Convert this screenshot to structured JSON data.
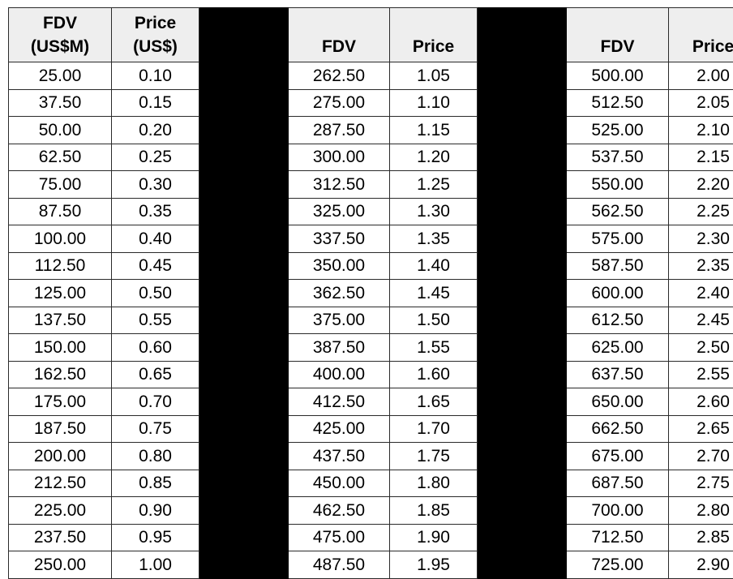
{
  "headers": {
    "col1_line1": "FDV",
    "col1_line2": "(US$M)",
    "col2_line1": "Price",
    "col2_line2": "(US$)",
    "col3": "FDV",
    "col4": "Price",
    "col5": "FDV",
    "col6": "Price"
  },
  "rows": [
    [
      "25.00",
      "0.10",
      "262.50",
      "1.05",
      "500.00",
      "2.00"
    ],
    [
      "37.50",
      "0.15",
      "275.00",
      "1.10",
      "512.50",
      "2.05"
    ],
    [
      "50.00",
      "0.20",
      "287.50",
      "1.15",
      "525.00",
      "2.10"
    ],
    [
      "62.50",
      "0.25",
      "300.00",
      "1.20",
      "537.50",
      "2.15"
    ],
    [
      "75.00",
      "0.30",
      "312.50",
      "1.25",
      "550.00",
      "2.20"
    ],
    [
      "87.50",
      "0.35",
      "325.00",
      "1.30",
      "562.50",
      "2.25"
    ],
    [
      "100.00",
      "0.40",
      "337.50",
      "1.35",
      "575.00",
      "2.30"
    ],
    [
      "112.50",
      "0.45",
      "350.00",
      "1.40",
      "587.50",
      "2.35"
    ],
    [
      "125.00",
      "0.50",
      "362.50",
      "1.45",
      "600.00",
      "2.40"
    ],
    [
      "137.50",
      "0.55",
      "375.00",
      "1.50",
      "612.50",
      "2.45"
    ],
    [
      "150.00",
      "0.60",
      "387.50",
      "1.55",
      "625.00",
      "2.50"
    ],
    [
      "162.50",
      "0.65",
      "400.00",
      "1.60",
      "637.50",
      "2.55"
    ],
    [
      "175.00",
      "0.70",
      "412.50",
      "1.65",
      "650.00",
      "2.60"
    ],
    [
      "187.50",
      "0.75",
      "425.00",
      "1.70",
      "662.50",
      "2.65"
    ],
    [
      "200.00",
      "0.80",
      "437.50",
      "1.75",
      "675.00",
      "2.70"
    ],
    [
      "212.50",
      "0.85",
      "450.00",
      "1.80",
      "687.50",
      "2.75"
    ],
    [
      "225.00",
      "0.90",
      "462.50",
      "1.85",
      "700.00",
      "2.80"
    ],
    [
      "237.50",
      "0.95",
      "475.00",
      "1.90",
      "712.50",
      "2.85"
    ],
    [
      "250.00",
      "1.00",
      "487.50",
      "1.95",
      "725.00",
      "2.90"
    ]
  ]
}
